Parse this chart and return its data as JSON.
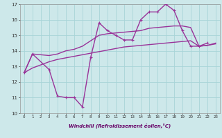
{
  "xlabel": "Windchill (Refroidissement éolien,°C)",
  "background_color": "#cde8ea",
  "grid_color": "#a8d4d8",
  "color": "#993399",
  "ylim": [
    10,
    17
  ],
  "xlim": [
    -0.5,
    23.5
  ],
  "yticks": [
    10,
    11,
    12,
    13,
    14,
    15,
    16,
    17
  ],
  "xticks": [
    0,
    1,
    2,
    3,
    4,
    5,
    6,
    7,
    8,
    9,
    10,
    11,
    12,
    13,
    14,
    15,
    16,
    17,
    18,
    19,
    20,
    21,
    22,
    23
  ],
  "jagged_x": [
    0,
    1,
    3,
    4,
    5,
    6,
    7,
    8,
    9,
    10,
    11,
    12,
    13,
    14,
    15,
    16,
    17,
    18,
    19,
    20,
    21,
    22
  ],
  "jagged_y": [
    12.6,
    13.8,
    12.8,
    11.1,
    11.0,
    11.0,
    10.4,
    13.6,
    15.8,
    15.3,
    15.0,
    14.7,
    14.7,
    16.0,
    16.5,
    16.5,
    17.0,
    16.6,
    15.3,
    14.3,
    14.3,
    14.5
  ],
  "smooth_upper_x": [
    0,
    1,
    2,
    3,
    4,
    5,
    6,
    7,
    8,
    9,
    10,
    11,
    12,
    13,
    14,
    15,
    16,
    17,
    18,
    19,
    20,
    21,
    22,
    23
  ],
  "smooth_upper_y": [
    12.6,
    13.8,
    13.75,
    13.7,
    13.8,
    14.0,
    14.1,
    14.3,
    14.65,
    15.0,
    15.1,
    15.15,
    15.2,
    15.25,
    15.3,
    15.45,
    15.5,
    15.55,
    15.6,
    15.6,
    15.5,
    14.3,
    14.35,
    14.5
  ],
  "smooth_lower_x": [
    0,
    1,
    2,
    3,
    4,
    5,
    6,
    7,
    8,
    9,
    10,
    11,
    12,
    13,
    14,
    15,
    16,
    17,
    18,
    19,
    20,
    21,
    22,
    23
  ],
  "smooth_lower_y": [
    12.6,
    12.9,
    13.1,
    13.3,
    13.45,
    13.55,
    13.65,
    13.75,
    13.85,
    13.95,
    14.05,
    14.15,
    14.25,
    14.3,
    14.35,
    14.4,
    14.45,
    14.5,
    14.55,
    14.6,
    14.65,
    14.3,
    14.35,
    14.45
  ]
}
